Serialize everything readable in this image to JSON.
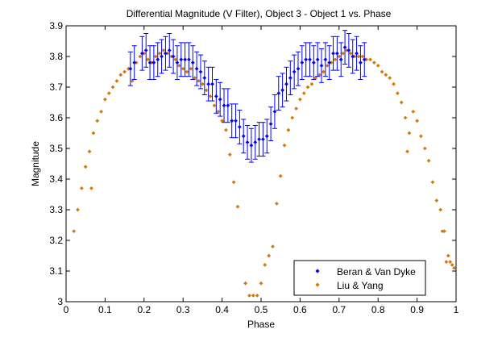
{
  "chart_data": {
    "type": "scatter",
    "title": "Differential Magnitude (V Filter), Object 3 - Object 1 vs. Phase",
    "xlabel": "Phase",
    "ylabel": "Magnitude",
    "xlim": [
      0,
      1
    ],
    "ylim": [
      3,
      3.9
    ],
    "xticks": [
      "0",
      "0.1",
      "0.2",
      "0.3",
      "0.4",
      "0.5",
      "0.6",
      "0.7",
      "0.8",
      "0.9",
      "1"
    ],
    "yticks": [
      "3",
      "3.1",
      "3.2",
      "3.3",
      "3.4",
      "3.5",
      "3.6",
      "3.7",
      "3.8",
      "3.9"
    ],
    "grid": false,
    "legend_position": "bottom-right",
    "series": [
      {
        "name": "Beran & Van Dyke",
        "color": "#0000ff",
        "marker": "diamond",
        "error": 0.055,
        "points": [
          [
            0.165,
            3.76
          ],
          [
            0.175,
            3.78
          ],
          [
            0.195,
            3.81
          ],
          [
            0.205,
            3.82
          ],
          [
            0.215,
            3.78
          ],
          [
            0.225,
            3.78
          ],
          [
            0.235,
            3.79
          ],
          [
            0.245,
            3.8
          ],
          [
            0.255,
            3.81
          ],
          [
            0.265,
            3.82
          ],
          [
            0.275,
            3.8
          ],
          [
            0.285,
            3.78
          ],
          [
            0.295,
            3.79
          ],
          [
            0.305,
            3.79
          ],
          [
            0.315,
            3.79
          ],
          [
            0.325,
            3.78
          ],
          [
            0.335,
            3.76
          ],
          [
            0.345,
            3.75
          ],
          [
            0.355,
            3.73
          ],
          [
            0.365,
            3.71
          ],
          [
            0.375,
            3.71
          ],
          [
            0.385,
            3.67
          ],
          [
            0.395,
            3.66
          ],
          [
            0.405,
            3.64
          ],
          [
            0.415,
            3.64
          ],
          [
            0.425,
            3.59
          ],
          [
            0.435,
            3.59
          ],
          [
            0.445,
            3.57
          ],
          [
            0.455,
            3.54
          ],
          [
            0.465,
            3.52
          ],
          [
            0.475,
            3.51
          ],
          [
            0.485,
            3.52
          ],
          [
            0.495,
            3.53
          ],
          [
            0.505,
            3.53
          ],
          [
            0.515,
            3.54
          ],
          [
            0.525,
            3.58
          ],
          [
            0.535,
            3.62
          ],
          [
            0.545,
            3.68
          ],
          [
            0.555,
            3.69
          ],
          [
            0.565,
            3.71
          ],
          [
            0.575,
            3.73
          ],
          [
            0.585,
            3.75
          ],
          [
            0.595,
            3.76
          ],
          [
            0.605,
            3.78
          ],
          [
            0.615,
            3.79
          ],
          [
            0.625,
            3.79
          ],
          [
            0.635,
            3.78
          ],
          [
            0.645,
            3.79
          ],
          [
            0.655,
            3.77
          ],
          [
            0.665,
            3.79
          ],
          [
            0.675,
            3.78
          ],
          [
            0.685,
            3.81
          ],
          [
            0.695,
            3.81
          ],
          [
            0.705,
            3.79
          ],
          [
            0.715,
            3.83
          ],
          [
            0.725,
            3.82
          ],
          [
            0.735,
            3.8
          ],
          [
            0.745,
            3.81
          ],
          [
            0.755,
            3.78
          ],
          [
            0.765,
            3.79
          ]
        ]
      },
      {
        "name": "Liu & Yang",
        "color": "#d4780a",
        "marker": "diamond",
        "points": [
          [
            0.02,
            3.23
          ],
          [
            0.03,
            3.3
          ],
          [
            0.04,
            3.37
          ],
          [
            0.05,
            3.44
          ],
          [
            0.06,
            3.49
          ],
          [
            0.065,
            3.37
          ],
          [
            0.07,
            3.55
          ],
          [
            0.08,
            3.59
          ],
          [
            0.09,
            3.62
          ],
          [
            0.1,
            3.66
          ],
          [
            0.11,
            3.68
          ],
          [
            0.12,
            3.7
          ],
          [
            0.13,
            3.72
          ],
          [
            0.14,
            3.74
          ],
          [
            0.15,
            3.75
          ],
          [
            0.16,
            3.76
          ],
          [
            0.17,
            3.72
          ],
          [
            0.18,
            3.78
          ],
          [
            0.19,
            3.8
          ],
          [
            0.2,
            3.81
          ],
          [
            0.21,
            3.79
          ],
          [
            0.22,
            3.78
          ],
          [
            0.23,
            3.8
          ],
          [
            0.24,
            3.81
          ],
          [
            0.25,
            3.82
          ],
          [
            0.26,
            3.81
          ],
          [
            0.27,
            3.8
          ],
          [
            0.28,
            3.79
          ],
          [
            0.29,
            3.77
          ],
          [
            0.3,
            3.76
          ],
          [
            0.31,
            3.75
          ],
          [
            0.32,
            3.76
          ],
          [
            0.33,
            3.73
          ],
          [
            0.34,
            3.72
          ],
          [
            0.35,
            3.71
          ],
          [
            0.36,
            3.69
          ],
          [
            0.37,
            3.67
          ],
          [
            0.38,
            3.64
          ],
          [
            0.39,
            3.62
          ],
          [
            0.4,
            3.59
          ],
          [
            0.41,
            3.56
          ],
          [
            0.42,
            3.48
          ],
          [
            0.43,
            3.39
          ],
          [
            0.44,
            3.31
          ],
          [
            0.46,
            3.06
          ],
          [
            0.47,
            3.02
          ],
          [
            0.48,
            3.02
          ],
          [
            0.49,
            3.02
          ],
          [
            0.5,
            3.06
          ],
          [
            0.51,
            3.12
          ],
          [
            0.52,
            3.15
          ],
          [
            0.53,
            3.18
          ],
          [
            0.54,
            3.32
          ],
          [
            0.55,
            3.41
          ],
          [
            0.56,
            3.51
          ],
          [
            0.57,
            3.56
          ],
          [
            0.58,
            3.6
          ],
          [
            0.59,
            3.63
          ],
          [
            0.6,
            3.66
          ],
          [
            0.61,
            3.68
          ],
          [
            0.62,
            3.7
          ],
          [
            0.63,
            3.71
          ],
          [
            0.64,
            3.73
          ],
          [
            0.65,
            3.74
          ],
          [
            0.66,
            3.75
          ],
          [
            0.67,
            3.77
          ],
          [
            0.68,
            3.78
          ],
          [
            0.69,
            3.79
          ],
          [
            0.7,
            3.8
          ],
          [
            0.71,
            3.81
          ],
          [
            0.72,
            3.82
          ],
          [
            0.73,
            3.81
          ],
          [
            0.74,
            3.8
          ],
          [
            0.75,
            3.8
          ],
          [
            0.76,
            3.8
          ],
          [
            0.77,
            3.79
          ],
          [
            0.78,
            3.79
          ],
          [
            0.79,
            3.78
          ],
          [
            0.8,
            3.77
          ],
          [
            0.81,
            3.75
          ],
          [
            0.82,
            3.74
          ],
          [
            0.83,
            3.73
          ],
          [
            0.84,
            3.71
          ],
          [
            0.85,
            3.68
          ],
          [
            0.86,
            3.65
          ],
          [
            0.87,
            3.6
          ],
          [
            0.875,
            3.49
          ],
          [
            0.88,
            3.55
          ],
          [
            0.89,
            3.62
          ],
          [
            0.9,
            3.59
          ],
          [
            0.91,
            3.54
          ],
          [
            0.92,
            3.5
          ],
          [
            0.93,
            3.46
          ],
          [
            0.94,
            3.39
          ],
          [
            0.95,
            3.33
          ],
          [
            0.96,
            3.3
          ],
          [
            0.965,
            3.23
          ],
          [
            0.97,
            3.23
          ],
          [
            0.975,
            3.13
          ],
          [
            0.98,
            3.15
          ],
          [
            0.985,
            3.13
          ],
          [
            0.99,
            3.12
          ],
          [
            0.995,
            3.11
          ]
        ]
      }
    ]
  }
}
